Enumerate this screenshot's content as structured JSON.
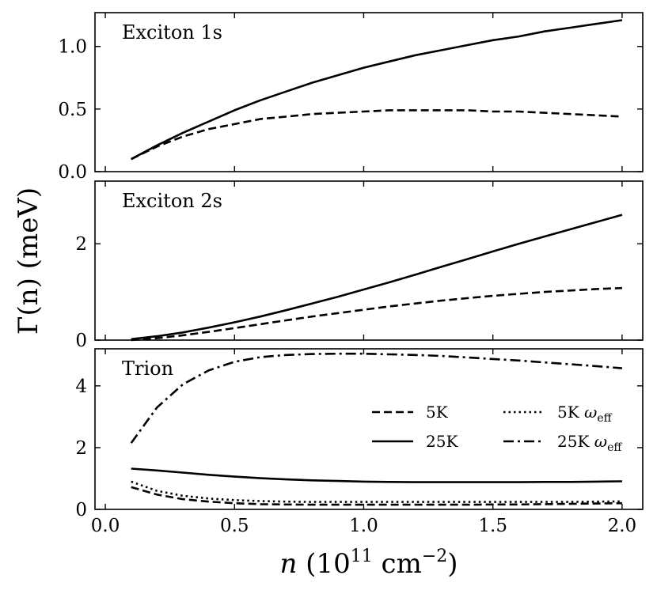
{
  "chart_data": {
    "type": "line",
    "ylabel": "Γ(n) (meV)",
    "xlabel_parts": {
      "var": "n",
      "open": " (10",
      "exp": "11",
      "unit": " cm",
      "unit_exp": "−2",
      "close": ")"
    },
    "xlim": [
      -0.04,
      2.08
    ],
    "xticks": [
      0.0,
      0.5,
      1.0,
      1.5,
      2.0
    ],
    "xtick_labels": [
      "0.0",
      "0.5",
      "1.0",
      "1.5",
      "2.0"
    ],
    "x": [
      0.1,
      0.2,
      0.3,
      0.4,
      0.5,
      0.6,
      0.7,
      0.8,
      0.9,
      1.0,
      1.1,
      1.2,
      1.3,
      1.4,
      1.5,
      1.6,
      1.7,
      1.8,
      1.9,
      2.0
    ],
    "panels": [
      {
        "id": "exciton-1s",
        "label": "Exciton 1s",
        "ylim": [
          0.0,
          1.27
        ],
        "yticks": [
          0.0,
          0.5,
          1.0
        ],
        "ytick_labels": [
          "0.0",
          "0.5",
          "1.0"
        ],
        "series": [
          {
            "name": "5K",
            "style": "dashed",
            "values": [
              0.1,
              0.2,
              0.28,
              0.34,
              0.38,
              0.42,
              0.44,
              0.46,
              0.47,
              0.48,
              0.49,
              0.49,
              0.49,
              0.49,
              0.48,
              0.48,
              0.47,
              0.46,
              0.45,
              0.44
            ]
          },
          {
            "name": "25K",
            "style": "solid",
            "values": [
              0.1,
              0.21,
              0.31,
              0.4,
              0.49,
              0.57,
              0.64,
              0.71,
              0.77,
              0.83,
              0.88,
              0.93,
              0.97,
              1.01,
              1.05,
              1.08,
              1.12,
              1.15,
              1.18,
              1.21
            ]
          }
        ]
      },
      {
        "id": "exciton-2s",
        "label": "Exciton 2s",
        "ylim": [
          0.0,
          3.3
        ],
        "yticks": [
          0,
          2
        ],
        "ytick_labels": [
          "0",
          "2"
        ],
        "series": [
          {
            "name": "5K",
            "style": "dashed",
            "values": [
              0.0,
              0.04,
              0.1,
              0.17,
              0.25,
              0.33,
              0.41,
              0.49,
              0.56,
              0.63,
              0.7,
              0.76,
              0.82,
              0.87,
              0.92,
              0.96,
              1.0,
              1.03,
              1.06,
              1.08
            ]
          },
          {
            "name": "25K",
            "style": "solid",
            "values": [
              0.02,
              0.08,
              0.16,
              0.26,
              0.37,
              0.49,
              0.62,
              0.76,
              0.9,
              1.05,
              1.2,
              1.36,
              1.52,
              1.68,
              1.84,
              2.0,
              2.15,
              2.3,
              2.45,
              2.6
            ]
          }
        ]
      },
      {
        "id": "trion",
        "label": "Trion",
        "ylim": [
          0.0,
          5.2
        ],
        "yticks": [
          0,
          2,
          4
        ],
        "ytick_labels": [
          "0",
          "2",
          "4"
        ],
        "series": [
          {
            "name": "5K",
            "style": "dashed",
            "values": [
              0.72,
              0.48,
              0.33,
              0.25,
              0.2,
              0.17,
              0.16,
              0.15,
              0.15,
              0.15,
              0.15,
              0.15,
              0.15,
              0.15,
              0.16,
              0.16,
              0.17,
              0.18,
              0.19,
              0.2
            ]
          },
          {
            "name": "25K",
            "style": "solid",
            "values": [
              1.32,
              1.26,
              1.19,
              1.12,
              1.06,
              1.01,
              0.97,
              0.94,
              0.92,
              0.9,
              0.89,
              0.88,
              0.88,
              0.88,
              0.88,
              0.88,
              0.89,
              0.89,
              0.9,
              0.91
            ]
          },
          {
            "name": "5K ω",
            "sub": "eff",
            "style": "dotted",
            "values": [
              0.9,
              0.6,
              0.44,
              0.35,
              0.3,
              0.27,
              0.25,
              0.24,
              0.24,
              0.24,
              0.24,
              0.24,
              0.24,
              0.24,
              0.24,
              0.24,
              0.24,
              0.24,
              0.25,
              0.26
            ]
          },
          {
            "name": "25K ω",
            "sub": "eff",
            "style": "dashdot",
            "values": [
              2.15,
              3.3,
              4.05,
              4.5,
              4.78,
              4.93,
              5.0,
              5.03,
              5.04,
              5.04,
              5.02,
              5.0,
              4.97,
              4.92,
              4.87,
              4.82,
              4.76,
              4.7,
              4.64,
              4.57
            ]
          }
        ]
      }
    ],
    "legend": {
      "location": "inside bottom panel, right",
      "entries": [
        {
          "name": "5K",
          "style": "dashed"
        },
        {
          "name": "5K ω",
          "sub": "eff",
          "style": "dotted"
        },
        {
          "name": "25K",
          "style": "solid"
        },
        {
          "name": "25K ω",
          "sub": "eff",
          "style": "dashdot"
        }
      ]
    }
  }
}
